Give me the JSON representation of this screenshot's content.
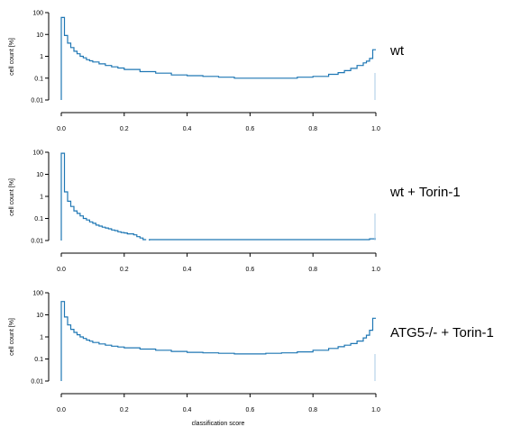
{
  "figure": {
    "ylabel": "cell count [%]",
    "xlabel": "classification score",
    "line_color": "#1f77b4"
  },
  "chart_data": [
    {
      "type": "line",
      "title": "wt",
      "ylabel": "cell count [%]",
      "xlabel": "",
      "yscale": "log",
      "ylim": [
        0.01,
        100
      ],
      "xlim": [
        0,
        1
      ],
      "yticks": [
        "0.01",
        "0.1",
        "1",
        "10",
        "100"
      ],
      "xticks": [
        "0.0",
        "0.2",
        "0.4",
        "0.6",
        "0.8",
        "1.0"
      ],
      "grid": false,
      "series": [
        {
          "x": [
            0.0,
            0.01,
            0.02,
            0.03,
            0.04,
            0.05,
            0.06,
            0.07,
            0.08,
            0.09,
            0.1,
            0.12,
            0.14,
            0.16,
            0.18,
            0.2,
            0.25,
            0.3,
            0.35,
            0.4,
            0.45,
            0.5,
            0.55,
            0.6,
            0.65,
            0.7,
            0.75,
            0.8,
            0.85,
            0.88,
            0.9,
            0.92,
            0.94,
            0.96,
            0.97,
            0.98,
            0.99
          ],
          "y": [
            60,
            9,
            4,
            2.5,
            1.7,
            1.3,
            1.0,
            0.85,
            0.7,
            0.62,
            0.55,
            0.45,
            0.38,
            0.33,
            0.29,
            0.25,
            0.2,
            0.17,
            0.14,
            0.13,
            0.12,
            0.11,
            0.1,
            0.1,
            0.1,
            0.1,
            0.11,
            0.12,
            0.15,
            0.18,
            0.22,
            0.28,
            0.38,
            0.5,
            0.6,
            0.8,
            2.0
          ]
        }
      ]
    },
    {
      "type": "line",
      "title": "wt + Torin-1",
      "ylabel": "cell count [%]",
      "xlabel": "",
      "yscale": "log",
      "ylim": [
        0.01,
        100
      ],
      "xlim": [
        0,
        1
      ],
      "yticks": [
        "0.01",
        "0.1",
        "1",
        "10",
        "100"
      ],
      "xticks": [
        "0.0",
        "0.2",
        "0.4",
        "0.6",
        "0.8",
        "1.0"
      ],
      "grid": false,
      "series": [
        {
          "x": [
            0.0,
            0.01,
            0.02,
            0.03,
            0.04,
            0.05,
            0.06,
            0.07,
            0.08,
            0.09,
            0.1,
            0.11,
            0.12,
            0.13,
            0.14,
            0.15,
            0.16,
            0.17,
            0.18,
            0.19,
            0.2,
            0.21,
            0.22,
            0.23,
            0.24,
            0.25,
            0.26
          ],
          "y": [
            90,
            1.6,
            0.6,
            0.35,
            0.22,
            0.17,
            0.13,
            0.1,
            0.085,
            0.07,
            0.06,
            0.05,
            0.045,
            0.04,
            0.037,
            0.034,
            0.03,
            0.028,
            0.025,
            0.023,
            0.022,
            0.02,
            0.02,
            0.018,
            0.015,
            0.013,
            0.011
          ]
        },
        {
          "x": [
            0.28,
            0.3,
            0.32,
            0.34,
            0.36,
            0.38,
            0.4,
            0.44,
            0.98,
            0.99
          ],
          "y": [
            0.011,
            0.011,
            0.011,
            0.011,
            0.011,
            0.011,
            0.011,
            0.011,
            0.012,
            0.012
          ]
        }
      ]
    },
    {
      "type": "line",
      "title": "ATG5-/- + Torin-1",
      "ylabel": "cell count [%]",
      "xlabel": "classification score",
      "yscale": "log",
      "ylim": [
        0.01,
        100
      ],
      "xlim": [
        0,
        1
      ],
      "yticks": [
        "0.01",
        "0.1",
        "1",
        "10",
        "100"
      ],
      "xticks": [
        "0.0",
        "0.2",
        "0.4",
        "0.6",
        "0.8",
        "1.0"
      ],
      "grid": false,
      "series": [
        {
          "x": [
            0.0,
            0.01,
            0.02,
            0.03,
            0.04,
            0.05,
            0.06,
            0.07,
            0.08,
            0.09,
            0.1,
            0.12,
            0.14,
            0.16,
            0.18,
            0.2,
            0.25,
            0.3,
            0.35,
            0.4,
            0.45,
            0.5,
            0.55,
            0.6,
            0.65,
            0.7,
            0.75,
            0.8,
            0.85,
            0.88,
            0.9,
            0.92,
            0.94,
            0.96,
            0.97,
            0.98,
            0.99
          ],
          "y": [
            40,
            8,
            3.5,
            2.2,
            1.6,
            1.25,
            1.0,
            0.85,
            0.72,
            0.64,
            0.56,
            0.48,
            0.42,
            0.38,
            0.35,
            0.32,
            0.28,
            0.25,
            0.22,
            0.2,
            0.19,
            0.18,
            0.17,
            0.17,
            0.18,
            0.19,
            0.21,
            0.25,
            0.3,
            0.36,
            0.42,
            0.5,
            0.65,
            0.9,
            1.2,
            2.0,
            7.0
          ]
        }
      ]
    }
  ]
}
